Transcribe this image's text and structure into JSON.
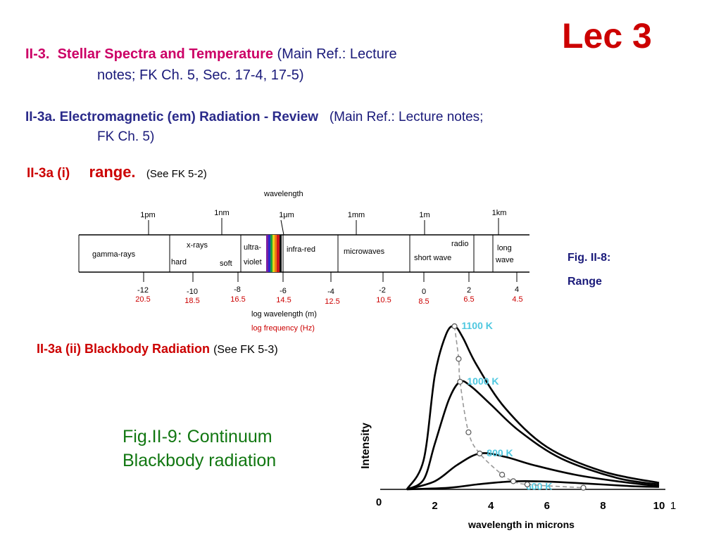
{
  "lecture_label": "Lec 3",
  "section1": {
    "number": "II-3.",
    "title": "Stellar Spectra and Temperature",
    "ref_line1": "(Main Ref.: Lecture",
    "ref_line2": "notes; FK Ch. 5,   Sec. 17-4, 17-5)"
  },
  "section2": {
    "title": "II-3a.  Electromagnetic (em) Radiation - Review",
    "ref_line1": "(Main Ref.: Lecture notes;",
    "ref_line2": "FK Ch. 5)"
  },
  "section3": {
    "number": "II-3a (i)",
    "title": "range.",
    "ref": "(See FK 5-2)"
  },
  "section4": {
    "title": "II-3a (ii) Blackbody Radiation",
    "ref": "(See FK 5-3)"
  },
  "fig8_caption": {
    "line1": "Fig. II-8:",
    "line2": "Range"
  },
  "fig9_caption": {
    "line1": "Fig.II-9: Continuum",
    "line2": "Blackbody radiation"
  },
  "spectrum": {
    "top_label": "wavelength",
    "wavelength_ticks": [
      "1pm",
      "1nm",
      "1μm",
      "1mm",
      "1m",
      "1km"
    ],
    "bands": {
      "gamma": "gamma-rays",
      "xrays": "x-rays",
      "hard": "hard",
      "soft": "soft",
      "uv1": "ultra-",
      "uv2": "violet",
      "ir": "infra-red",
      "micro": "microwaves",
      "radio": "radio",
      "short": "short wave",
      "long1": "long",
      "long2": "wave"
    },
    "log_wavelength": [
      "-12",
      "-10",
      "-8",
      "-6",
      "-4",
      "-2",
      "0",
      "2",
      "4"
    ],
    "log_frequency": [
      "20.5",
      "18.5",
      "16.5",
      "14.5",
      "12.5",
      "10.5",
      "8.5",
      "6.5",
      "4.5"
    ],
    "axis_label_wl": "log wavelength (m)",
    "axis_label_freq": "log frequency (Hz)",
    "colors": {
      "frequency": "#cc0000",
      "tick": "#000000"
    }
  },
  "chart_data": {
    "type": "line",
    "xlabel": "wavelength in microns",
    "ylabel": "Intensity",
    "xticks": [
      "0",
      "2",
      "4",
      "6",
      "8",
      "10"
    ],
    "extra_tick": "1",
    "xlim": [
      0,
      10
    ],
    "series": [
      {
        "name": "1100 K",
        "x": [
          1.0,
          1.6,
          2.0,
          2.4,
          2.7,
          3.0,
          3.5,
          4.5,
          6.0,
          8.0,
          10.0
        ],
        "y": [
          0.0,
          0.18,
          0.7,
          0.95,
          1.0,
          0.93,
          0.76,
          0.5,
          0.26,
          0.11,
          0.04
        ]
      },
      {
        "name": "1000 K",
        "x": [
          1.0,
          1.6,
          2.0,
          2.5,
          2.9,
          3.3,
          4.0,
          5.0,
          6.5,
          8.5,
          10.0
        ],
        "y": [
          0.0,
          0.06,
          0.28,
          0.55,
          0.66,
          0.63,
          0.52,
          0.36,
          0.19,
          0.07,
          0.03
        ]
      },
      {
        "name": "800 K",
        "x": [
          1.0,
          2.0,
          2.8,
          3.6,
          4.5,
          5.5,
          7.0,
          8.5,
          10.0
        ],
        "y": [
          0.0,
          0.05,
          0.15,
          0.22,
          0.2,
          0.15,
          0.09,
          0.05,
          0.02
        ]
      },
      {
        "name": "600 K",
        "x": [
          1.0,
          2.5,
          3.5,
          4.4,
          5.0,
          6.0,
          7.5,
          9.0,
          10.0
        ],
        "y": [
          0.0,
          0.01,
          0.03,
          0.045,
          0.05,
          0.048,
          0.035,
          0.02,
          0.015
        ]
      }
    ],
    "peak_locus": {
      "x": [
        2.7,
        2.85,
        2.9,
        3.2,
        3.6,
        4.4,
        4.8,
        5.3,
        7.3
      ],
      "y": [
        1.0,
        0.8,
        0.66,
        0.35,
        0.22,
        0.09,
        0.05,
        0.03,
        0.01
      ]
    },
    "colors": {
      "curve": "#000000",
      "label": "#4fc8e0",
      "locus": "#999999"
    }
  }
}
